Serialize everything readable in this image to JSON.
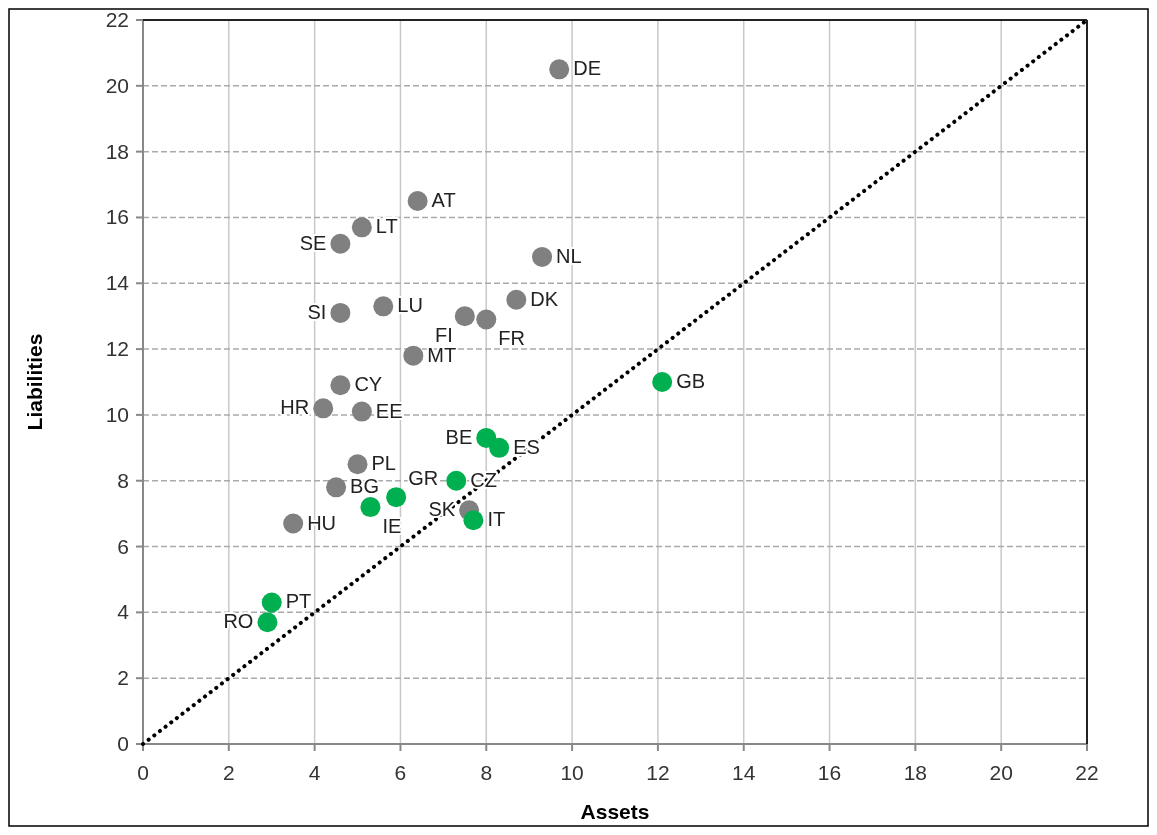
{
  "chart_data": {
    "type": "scatter",
    "xlabel": "Assets",
    "ylabel": "Liabilities",
    "xlim": [
      0,
      22
    ],
    "ylim": [
      0,
      22
    ],
    "xticks": [
      0,
      2,
      4,
      6,
      8,
      10,
      12,
      14,
      16,
      18,
      20,
      22
    ],
    "yticks": [
      0,
      2,
      4,
      6,
      8,
      10,
      12,
      14,
      16,
      18,
      20,
      22
    ],
    "grid": true,
    "marker": "circle",
    "series": [
      {
        "color": "#808080",
        "x": [
          9.7,
          6.4,
          5.1,
          4.6,
          9.3,
          8.7,
          5.6,
          4.6,
          7.5,
          8.0,
          6.3,
          4.6,
          4.2,
          5.1,
          5.0,
          4.5,
          3.5,
          7.6
        ],
        "values": [
          20.5,
          16.5,
          15.7,
          15.2,
          14.8,
          13.5,
          13.3,
          13.1,
          13.0,
          12.9,
          11.8,
          10.9,
          10.2,
          10.1,
          8.5,
          7.8,
          6.7,
          7.1
        ]
      },
      {
        "color": "#00b050",
        "x": [
          12.1,
          8.0,
          8.3,
          7.3,
          5.9,
          5.3,
          7.7,
          3.0,
          2.9
        ],
        "values": [
          11.0,
          9.3,
          9.0,
          8.0,
          7.5,
          7.2,
          6.8,
          4.3,
          3.7
        ]
      },
      {
        "type": "line",
        "color": "#000000",
        "line_style": "dotted",
        "marker": "none",
        "x": [
          0,
          22
        ],
        "values": [
          0,
          22
        ]
      }
    ],
    "annotations": [
      {
        "text": "DE",
        "x": 9.7,
        "y": 20.5
      },
      {
        "text": "AT",
        "x": 6.4,
        "y": 16.5
      },
      {
        "text": "LT",
        "x": 5.1,
        "y": 15.7
      },
      {
        "text": "SE",
        "x": 4.6,
        "y": 15.2
      },
      {
        "text": "NL",
        "x": 9.3,
        "y": 14.8
      },
      {
        "text": "DK",
        "x": 8.7,
        "y": 13.5
      },
      {
        "text": "LU",
        "x": 5.6,
        "y": 13.3
      },
      {
        "text": "SI",
        "x": 4.6,
        "y": 13.1
      },
      {
        "text": "FI",
        "x": 7.5,
        "y": 13.0
      },
      {
        "text": "FR",
        "x": 8.0,
        "y": 12.9
      },
      {
        "text": "MT",
        "x": 6.3,
        "y": 11.8
      },
      {
        "text": "CY",
        "x": 4.6,
        "y": 10.9
      },
      {
        "text": "HR",
        "x": 4.2,
        "y": 10.2
      },
      {
        "text": "EE",
        "x": 5.1,
        "y": 10.1
      },
      {
        "text": "PL",
        "x": 5.0,
        "y": 8.5
      },
      {
        "text": "BG",
        "x": 4.5,
        "y": 7.8
      },
      {
        "text": "HU",
        "x": 3.5,
        "y": 6.7
      },
      {
        "text": "SK",
        "x": 7.6,
        "y": 7.1
      },
      {
        "text": "GB",
        "x": 12.1,
        "y": 11.0
      },
      {
        "text": "BE",
        "x": 8.0,
        "y": 9.3
      },
      {
        "text": "ES",
        "x": 8.3,
        "y": 9.0
      },
      {
        "text": "CZ",
        "x": 7.3,
        "y": 8.0
      },
      {
        "text": "GR",
        "x": 5.9,
        "y": 7.5
      },
      {
        "text": "IE",
        "x": 5.3,
        "y": 7.2
      },
      {
        "text": "IT",
        "x": 7.7,
        "y": 6.8
      },
      {
        "text": "PT",
        "x": 3.0,
        "y": 4.3
      },
      {
        "text": "RO",
        "x": 2.9,
        "y": 3.7
      }
    ]
  }
}
